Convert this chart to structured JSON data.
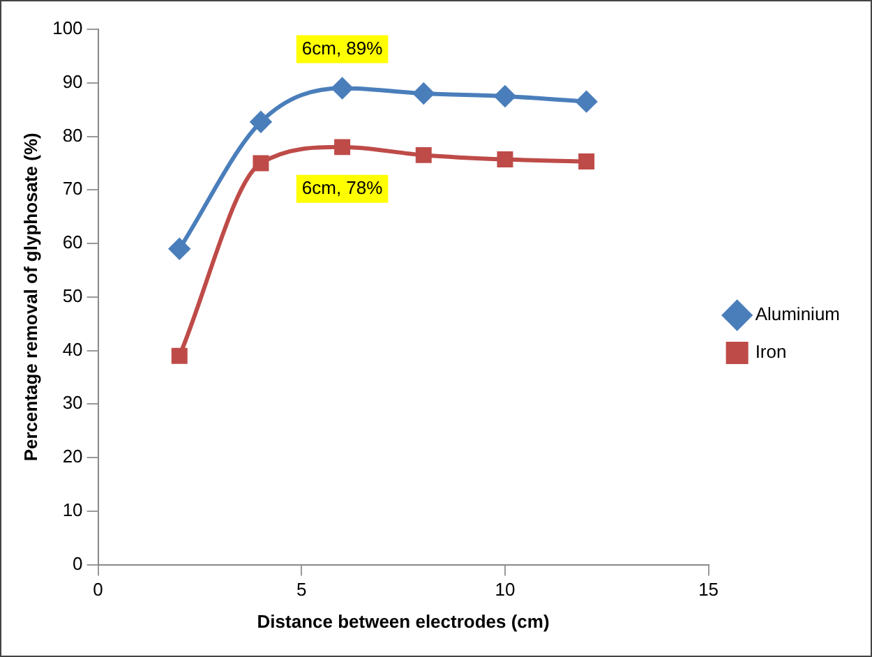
{
  "chart_data": {
    "type": "line",
    "xlabel": "Distance between electrodes (cm)",
    "ylabel": "Percentage removal of glyphosate (%)",
    "x": [
      2,
      4,
      6,
      8,
      10,
      12
    ],
    "series": [
      {
        "name": "Aluminium",
        "color": "#4a7ebb",
        "values": [
          59,
          82.7,
          89,
          88,
          87.5,
          86.5
        ],
        "marker": "diamond"
      },
      {
        "name": "Iron",
        "color": "#be4b48",
        "values": [
          39,
          75,
          78,
          76.5,
          75.7,
          75.3
        ],
        "marker": "square"
      }
    ],
    "xlim": [
      0,
      15
    ],
    "xticks": [
      0,
      5,
      10,
      15
    ],
    "ylim": [
      0,
      100
    ],
    "yticks": [
      0,
      10,
      20,
      30,
      40,
      50,
      60,
      70,
      80,
      90,
      100
    ],
    "grid": false,
    "legend": "right",
    "line_style": "solid",
    "annotations": [
      {
        "text": "6cm, 89%",
        "x": 6,
        "y": 89
      },
      {
        "text": "6cm, 78%",
        "x": 6,
        "y": 78
      }
    ]
  }
}
